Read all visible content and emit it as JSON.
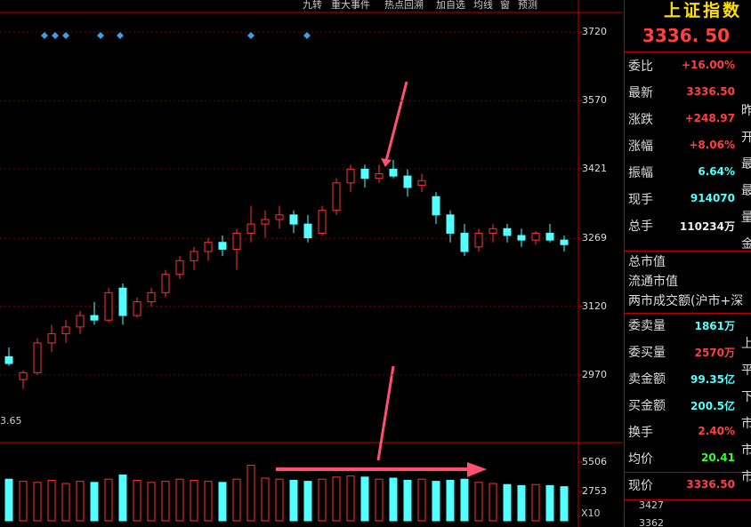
{
  "toolbar": [
    "九转",
    "重大事件",
    "热点回溯",
    "加自选",
    "均线",
    "窗",
    "预测"
  ],
  "chart_data": {
    "type": "candlestick",
    "ylim": [
      2828,
      3790
    ],
    "yticks": [
      3720,
      3570,
      3421,
      3269,
      3120,
      2970
    ],
    "up_color": "#ff3232",
    "down_color": "#54ffff",
    "open": [
      3010,
      2960,
      2975,
      3040,
      3060,
      3075,
      3100,
      3090,
      3160,
      3100,
      3130,
      3150,
      3190,
      3220,
      3240,
      3260,
      3245,
      3280,
      3300,
      3310,
      3320,
      3300,
      3280,
      3330,
      3390,
      3420,
      3400,
      3420,
      3405,
      3385,
      3360,
      3320,
      3280,
      3250,
      3280,
      3290,
      3275,
      3265,
      3280,
      3265
    ],
    "high": [
      3030,
      2980,
      3050,
      3080,
      3090,
      3110,
      3130,
      3160,
      3170,
      3140,
      3160,
      3200,
      3230,
      3250,
      3270,
      3275,
      3290,
      3340,
      3330,
      3340,
      3330,
      3320,
      3340,
      3400,
      3430,
      3430,
      3430,
      3440,
      3420,
      3410,
      3370,
      3330,
      3300,
      3290,
      3300,
      3300,
      3290,
      3285,
      3300,
      3275
    ],
    "low": [
      2990,
      2940,
      2970,
      3020,
      3040,
      3060,
      3080,
      3085,
      3080,
      3095,
      3120,
      3140,
      3180,
      3200,
      3220,
      3230,
      3200,
      3260,
      3270,
      3290,
      3280,
      3260,
      3275,
      3320,
      3370,
      3380,
      3390,
      3400,
      3360,
      3370,
      3300,
      3260,
      3230,
      3240,
      3260,
      3260,
      3250,
      3255,
      3260,
      3240
    ],
    "close": [
      2995,
      2975,
      3040,
      3060,
      3075,
      3100,
      3090,
      3150,
      3100,
      3130,
      3150,
      3190,
      3220,
      3240,
      3260,
      3245,
      3280,
      3300,
      3310,
      3320,
      3300,
      3270,
      3330,
      3390,
      3420,
      3400,
      3410,
      3405,
      3380,
      3395,
      3320,
      3280,
      3240,
      3280,
      3290,
      3275,
      3265,
      3280,
      3265,
      3255
    ],
    "volume": {
      "ylim": [
        0,
        7170
      ],
      "yticks": [
        5506,
        2753
      ],
      "values": [
        3900,
        3700,
        3600,
        3800,
        3500,
        3700,
        3600,
        3900,
        4300,
        3800,
        3600,
        3700,
        3900,
        3800,
        3700,
        3600,
        3900,
        5200,
        4000,
        3900,
        3800,
        3700,
        3900,
        4100,
        4200,
        4100,
        3900,
        4000,
        3800,
        3900,
        3700,
        3800,
        3900,
        3600,
        3500,
        3400,
        3300,
        3400,
        3300,
        3200
      ]
    },
    "scale_label": "X10",
    "left_label": "3.65"
  },
  "quote_panel": {
    "title": "上证指数",
    "price": "3336. 50",
    "rows": [
      {
        "label": "委比",
        "value": "+16.00%"
      },
      {
        "label": "最新",
        "value": "3336.50",
        "extra": "昨"
      },
      {
        "label": "涨跌",
        "value": "+248.97",
        "extra": "开"
      },
      {
        "label": "涨幅",
        "value": "+8.06%",
        "extra": "最"
      },
      {
        "label": "振幅",
        "value": "6.64%",
        "extra": "最"
      },
      {
        "label": "现手",
        "value": "914070",
        "extra": "量"
      },
      {
        "label": "总手",
        "value": "110234万",
        "extra": "金"
      },
      {
        "label": "总市值"
      },
      {
        "label": "流通市值"
      },
      {
        "label": "两市成交额(沪市+深"
      },
      {
        "label": "委卖量",
        "value": "1861万",
        "extra": "上"
      },
      {
        "label": "委买量",
        "value": "2570万",
        "extra": "平"
      },
      {
        "label": "卖金额",
        "value": "99.35亿",
        "extra": "下"
      },
      {
        "label": "买金额",
        "value": "200.5亿",
        "extra": "市"
      },
      {
        "label": "换手",
        "value": "2.40%",
        "extra": "市"
      },
      {
        "label": "均价",
        "value": "20.41",
        "extra": "市"
      },
      {
        "label": "现价",
        "value": "3336.50"
      }
    ],
    "mini_ticks": [
      "3427",
      "3362"
    ]
  }
}
